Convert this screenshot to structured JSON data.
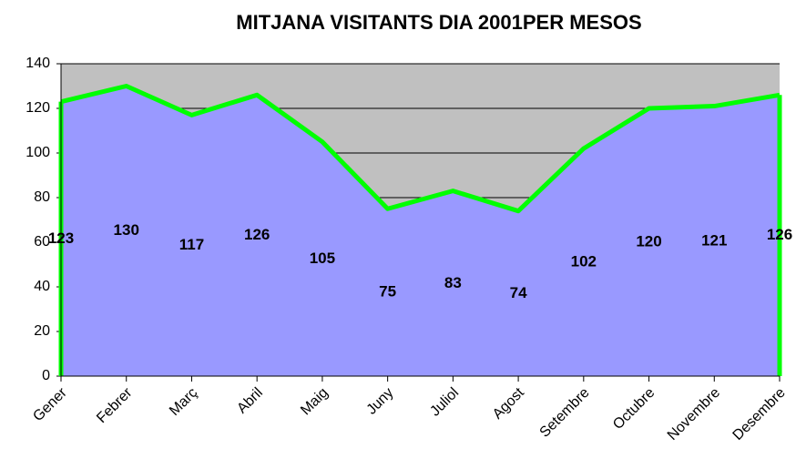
{
  "chart_data": {
    "type": "area",
    "title": "MITJANA VISITANTS DIA 2001PER MESOS",
    "categories": [
      "Gener",
      "Febrer",
      "Març",
      "Abril",
      "Maig",
      "Juny",
      "Juliol",
      "Agost",
      "Setembre",
      "Octubre",
      "Novembre",
      "Desembre"
    ],
    "values": [
      123,
      130,
      117,
      126,
      105,
      75,
      83,
      74,
      102,
      120,
      121,
      126
    ],
    "color": "#9999ff",
    "line_color": "#00ff00",
    "plot_background": "#c0c0c0",
    "ylim": [
      0,
      140
    ],
    "yticks": [
      0,
      20,
      40,
      60,
      80,
      100,
      120,
      140
    ],
    "grid": true
  }
}
